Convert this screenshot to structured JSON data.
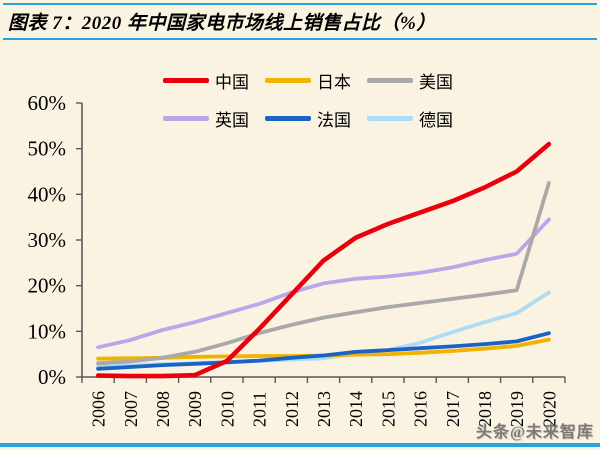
{
  "header": {
    "title": "图表 7：2020 年中国家电市场线上销售占比（%）"
  },
  "watermark": "头条@未来智库",
  "colors": {
    "accent_rule": "#2AA2DC",
    "background": "#FBF3E2",
    "axis": "#595959",
    "watermark": "#666666"
  },
  "chart_data": {
    "type": "line",
    "title": "2020 年中国家电市场线上销售占比（%）",
    "xlabel": "",
    "ylabel": "",
    "ylim": [
      0,
      60
    ],
    "grid": false,
    "legend_position": "top-center-two-rows",
    "y_ticks": [
      "0%",
      "10%",
      "20%",
      "30%",
      "40%",
      "50%",
      "60%"
    ],
    "categories": [
      "2006",
      "2007",
      "2008",
      "2009",
      "2010",
      "2011",
      "2012",
      "2013",
      "2014",
      "2015",
      "2016",
      "2017",
      "2018",
      "2019",
      "2020"
    ],
    "series": [
      {
        "name": "中国",
        "key": "china",
        "color": "#E8000D",
        "values": [
          0.3,
          0.2,
          0.2,
          0.4,
          3.5,
          10.5,
          18.0,
          25.5,
          30.5,
          33.5,
          36.0,
          38.5,
          41.5,
          45.0,
          51.0
        ]
      },
      {
        "name": "日本",
        "key": "japan",
        "color": "#F2B200",
        "values": [
          4.0,
          4.1,
          4.2,
          4.4,
          4.5,
          4.6,
          4.6,
          4.7,
          4.9,
          5.0,
          5.3,
          5.7,
          6.2,
          6.8,
          8.2
        ]
      },
      {
        "name": "美国",
        "key": "usa",
        "color": "#A9A9A9",
        "values": [
          3.0,
          3.4,
          4.2,
          5.5,
          7.4,
          9.6,
          11.4,
          13.0,
          14.2,
          15.3,
          16.2,
          17.1,
          18.0,
          19.0,
          42.5
        ]
      },
      {
        "name": "英国",
        "key": "uk",
        "color": "#BCA5E8",
        "values": [
          6.5,
          8.1,
          10.3,
          12.0,
          14.0,
          16.0,
          18.5,
          20.5,
          21.5,
          22.0,
          22.8,
          24.0,
          25.6,
          27.0,
          34.5
        ]
      },
      {
        "name": "法国",
        "key": "france",
        "color": "#1B62C6",
        "values": [
          1.8,
          2.2,
          2.6,
          2.9,
          3.2,
          3.6,
          4.2,
          4.7,
          5.5,
          5.9,
          6.3,
          6.7,
          7.2,
          7.8,
          9.6
        ]
      },
      {
        "name": "德国",
        "key": "germany",
        "color": "#AEDCF5",
        "values": [
          2.3,
          2.5,
          2.8,
          3.0,
          3.3,
          3.5,
          3.8,
          4.1,
          5.1,
          5.9,
          7.5,
          9.8,
          12.0,
          14.0,
          18.5
        ]
      }
    ],
    "draw_order": [
      "germany",
      "japan",
      "uk",
      "usa",
      "france",
      "china"
    ]
  }
}
